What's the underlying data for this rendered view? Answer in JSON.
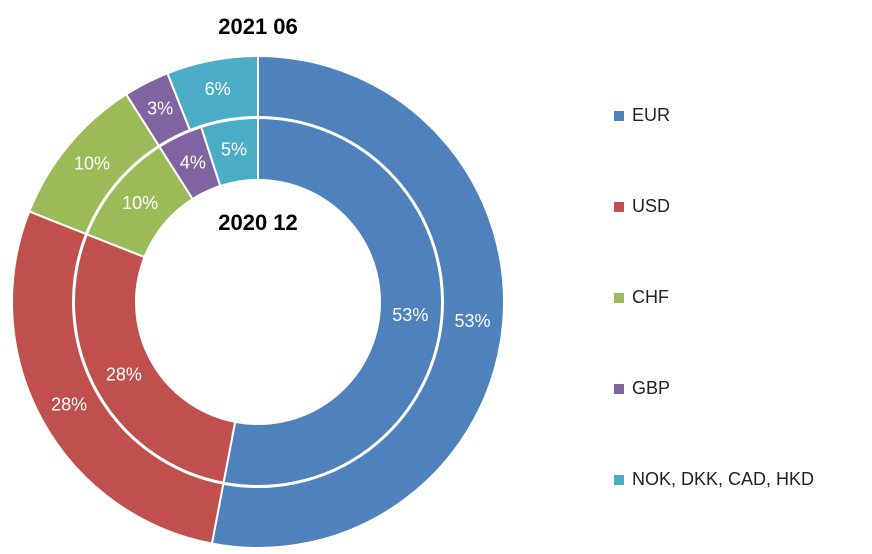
{
  "chart_data": {
    "type": "donut",
    "categories": [
      "EUR",
      "USD",
      "CHF",
      "GBP",
      "NOK, DKK, CAD, HKD"
    ],
    "colors": [
      "#4f81bd",
      "#c0504d",
      "#9bbb59",
      "#8064a2",
      "#4bacc6"
    ],
    "series": [
      {
        "name": "2021 06",
        "values": [
          53,
          28,
          10,
          3,
          6
        ],
        "value_labels": [
          "53%",
          "28%",
          "10%",
          "3%",
          "6%"
        ]
      },
      {
        "name": "2020 12",
        "values": [
          53,
          28,
          10,
          4,
          5
        ],
        "value_labels": [
          "53%",
          "28%",
          "10%",
          "4%",
          "5%"
        ]
      }
    ]
  }
}
